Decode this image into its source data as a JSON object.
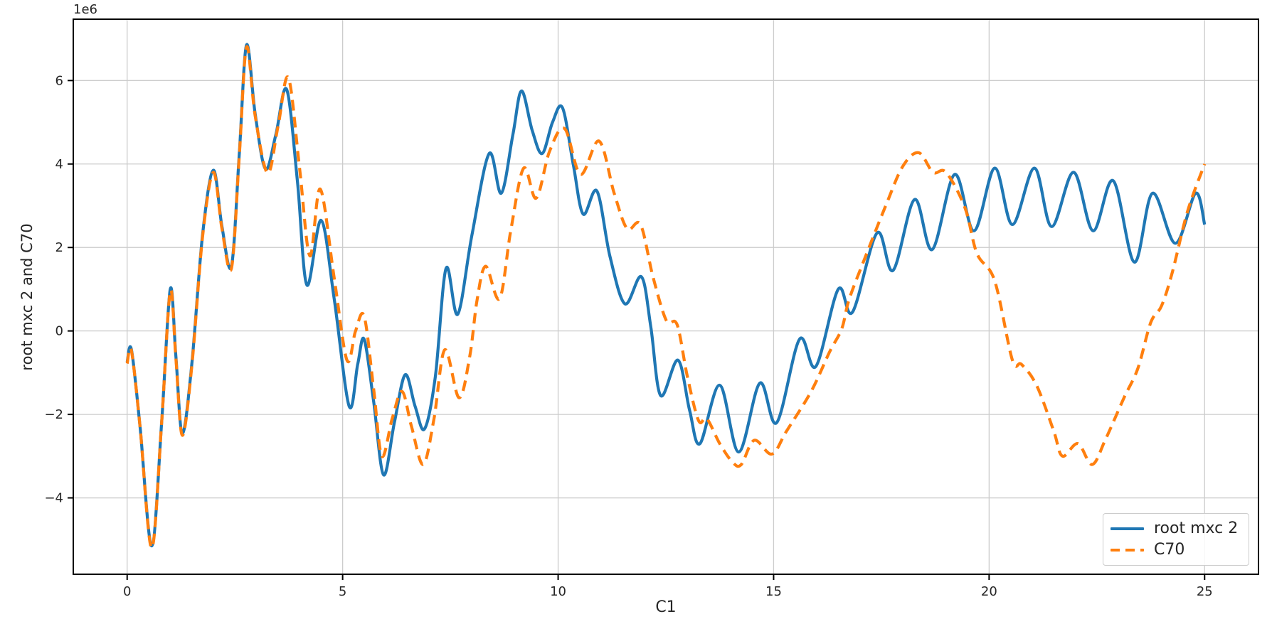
{
  "chart_data": {
    "type": "line",
    "title": "",
    "xlabel": "C1",
    "ylabel": "root mxc 2 and C70",
    "y_offset_label": "1e6",
    "y_scale": "1e6",
    "xlim": [
      -1.25,
      26.25
    ],
    "ylim": [
      -5.83,
      7.47
    ],
    "xticks": [
      0,
      5,
      10,
      15,
      20,
      25
    ],
    "xticklabels": [
      "0",
      "5",
      "10",
      "15",
      "20",
      "25"
    ],
    "yticks": [
      -4,
      -2,
      0,
      2,
      4,
      6
    ],
    "yticklabels": [
      "−4",
      "−2",
      "0",
      "2",
      "4",
      "6"
    ],
    "grid": true,
    "grid_color": "#cccccc",
    "spine_color": "#000000",
    "tick_color": "#262626",
    "legend_position": "lower right",
    "series": [
      {
        "name": "root mxc 2",
        "color": "#1f77b4",
        "style": "solid",
        "points": [
          [
            0,
            -0.75
          ],
          [
            0.1,
            -0.45
          ],
          [
            0.3,
            -2.3
          ],
          [
            0.57,
            -5.15
          ],
          [
            0.8,
            -2.2
          ],
          [
            1.0,
            1.0
          ],
          [
            1.13,
            -0.6
          ],
          [
            1.28,
            -2.45
          ],
          [
            1.5,
            -0.8
          ],
          [
            1.75,
            2.3
          ],
          [
            2.0,
            3.85
          ],
          [
            2.2,
            2.5
          ],
          [
            2.42,
            1.55
          ],
          [
            2.6,
            4.2
          ],
          [
            2.77,
            6.85
          ],
          [
            2.97,
            5.2
          ],
          [
            3.21,
            3.88
          ],
          [
            3.45,
            4.7
          ],
          [
            3.7,
            5.79
          ],
          [
            3.95,
            3.6
          ],
          [
            4.17,
            1.1
          ],
          [
            4.5,
            2.65
          ],
          [
            4.8,
            0.8
          ],
          [
            5.15,
            -1.8
          ],
          [
            5.35,
            -0.8
          ],
          [
            5.5,
            -0.2
          ],
          [
            5.72,
            -1.7
          ],
          [
            5.95,
            -3.45
          ],
          [
            6.2,
            -2.2
          ],
          [
            6.45,
            -1.05
          ],
          [
            6.68,
            -1.8
          ],
          [
            6.9,
            -2.35
          ],
          [
            7.15,
            -1.1
          ],
          [
            7.4,
            1.5
          ],
          [
            7.67,
            0.4
          ],
          [
            8.0,
            2.3
          ],
          [
            8.4,
            4.25
          ],
          [
            8.68,
            3.3
          ],
          [
            8.95,
            4.7
          ],
          [
            9.15,
            5.75
          ],
          [
            9.4,
            4.8
          ],
          [
            9.63,
            4.25
          ],
          [
            9.87,
            5.0
          ],
          [
            10.1,
            5.35
          ],
          [
            10.35,
            4.0
          ],
          [
            10.58,
            2.8
          ],
          [
            10.9,
            3.35
          ],
          [
            11.2,
            1.8
          ],
          [
            11.55,
            0.65
          ],
          [
            11.93,
            1.3
          ],
          [
            12.15,
            0.1
          ],
          [
            12.38,
            -1.55
          ],
          [
            12.78,
            -0.7
          ],
          [
            13.05,
            -1.9
          ],
          [
            13.29,
            -2.7
          ],
          [
            13.75,
            -1.3
          ],
          [
            14.19,
            -2.9
          ],
          [
            14.68,
            -1.25
          ],
          [
            15.07,
            -2.2
          ],
          [
            15.6,
            -0.2
          ],
          [
            15.98,
            -0.85
          ],
          [
            16.5,
            1.0
          ],
          [
            16.83,
            0.45
          ],
          [
            17.4,
            2.35
          ],
          [
            17.77,
            1.45
          ],
          [
            18.27,
            3.15
          ],
          [
            18.68,
            1.95
          ],
          [
            19.2,
            3.75
          ],
          [
            19.65,
            2.4
          ],
          [
            20.13,
            3.9
          ],
          [
            20.54,
            2.55
          ],
          [
            21.05,
            3.9
          ],
          [
            21.45,
            2.5
          ],
          [
            21.96,
            3.8
          ],
          [
            22.41,
            2.4
          ],
          [
            22.88,
            3.6
          ],
          [
            23.37,
            1.65
          ],
          [
            23.79,
            3.3
          ],
          [
            24.32,
            2.1
          ],
          [
            24.79,
            3.3
          ],
          [
            25.0,
            2.55
          ]
        ]
      },
      {
        "name": "C70",
        "color": "#ff7f0e",
        "style": "dashed",
        "points": [
          [
            0,
            -0.78
          ],
          [
            0.1,
            -0.48
          ],
          [
            0.3,
            -2.3
          ],
          [
            0.57,
            -5.2
          ],
          [
            0.8,
            -2.2
          ],
          [
            1.0,
            0.95
          ],
          [
            1.13,
            -0.65
          ],
          [
            1.28,
            -2.5
          ],
          [
            1.5,
            -0.85
          ],
          [
            1.75,
            2.25
          ],
          [
            2.0,
            3.8
          ],
          [
            2.2,
            2.45
          ],
          [
            2.42,
            1.5
          ],
          [
            2.6,
            4.15
          ],
          [
            2.77,
            6.8
          ],
          [
            2.97,
            5.15
          ],
          [
            3.26,
            3.78
          ],
          [
            3.5,
            4.9
          ],
          [
            3.74,
            6.07
          ],
          [
            4.0,
            3.9
          ],
          [
            4.24,
            1.8
          ],
          [
            4.48,
            3.4
          ],
          [
            4.8,
            1.3
          ],
          [
            5.1,
            -0.7
          ],
          [
            5.3,
            0.0
          ],
          [
            5.5,
            0.35
          ],
          [
            5.72,
            -1.4
          ],
          [
            5.91,
            -3.0
          ],
          [
            6.15,
            -2.1
          ],
          [
            6.38,
            -1.45
          ],
          [
            6.6,
            -2.3
          ],
          [
            6.87,
            -3.2
          ],
          [
            7.12,
            -2.1
          ],
          [
            7.37,
            -0.45
          ],
          [
            7.7,
            -1.6
          ],
          [
            7.95,
            -0.6
          ],
          [
            8.12,
            0.75
          ],
          [
            8.32,
            1.55
          ],
          [
            8.64,
            0.77
          ],
          [
            8.9,
            2.4
          ],
          [
            9.2,
            3.9
          ],
          [
            9.49,
            3.18
          ],
          [
            9.8,
            4.3
          ],
          [
            10.15,
            4.85
          ],
          [
            10.52,
            3.75
          ],
          [
            10.95,
            4.55
          ],
          [
            11.3,
            3.3
          ],
          [
            11.6,
            2.45
          ],
          [
            11.91,
            2.55
          ],
          [
            12.2,
            1.3
          ],
          [
            12.51,
            0.25
          ],
          [
            12.76,
            0.15
          ],
          [
            13.0,
            -1.1
          ],
          [
            13.26,
            -2.15
          ],
          [
            13.45,
            -2.1
          ],
          [
            13.75,
            -2.7
          ],
          [
            14.05,
            -3.15
          ],
          [
            14.25,
            -3.2
          ],
          [
            14.55,
            -2.62
          ],
          [
            14.96,
            -2.95
          ],
          [
            15.3,
            -2.4
          ],
          [
            15.87,
            -1.45
          ],
          [
            16.3,
            -0.5
          ],
          [
            16.58,
            0.05
          ],
          [
            16.75,
            0.75
          ],
          [
            17.1,
            1.7
          ],
          [
            17.6,
            3.0
          ],
          [
            18.0,
            3.95
          ],
          [
            18.37,
            4.27
          ],
          [
            18.7,
            3.8
          ],
          [
            19.0,
            3.8
          ],
          [
            19.44,
            2.95
          ],
          [
            19.72,
            1.85
          ],
          [
            20.13,
            1.2
          ],
          [
            20.54,
            -0.7
          ],
          [
            20.75,
            -0.8
          ],
          [
            21.1,
            -1.3
          ],
          [
            21.5,
            -2.4
          ],
          [
            21.7,
            -3.0
          ],
          [
            22.06,
            -2.7
          ],
          [
            22.39,
            -3.2
          ],
          [
            22.7,
            -2.6
          ],
          [
            23.13,
            -1.6
          ],
          [
            23.45,
            -0.9
          ],
          [
            23.75,
            0.2
          ],
          [
            24.0,
            0.6
          ],
          [
            24.25,
            1.4
          ],
          [
            24.6,
            2.85
          ],
          [
            25.0,
            4.0
          ]
        ]
      }
    ]
  }
}
